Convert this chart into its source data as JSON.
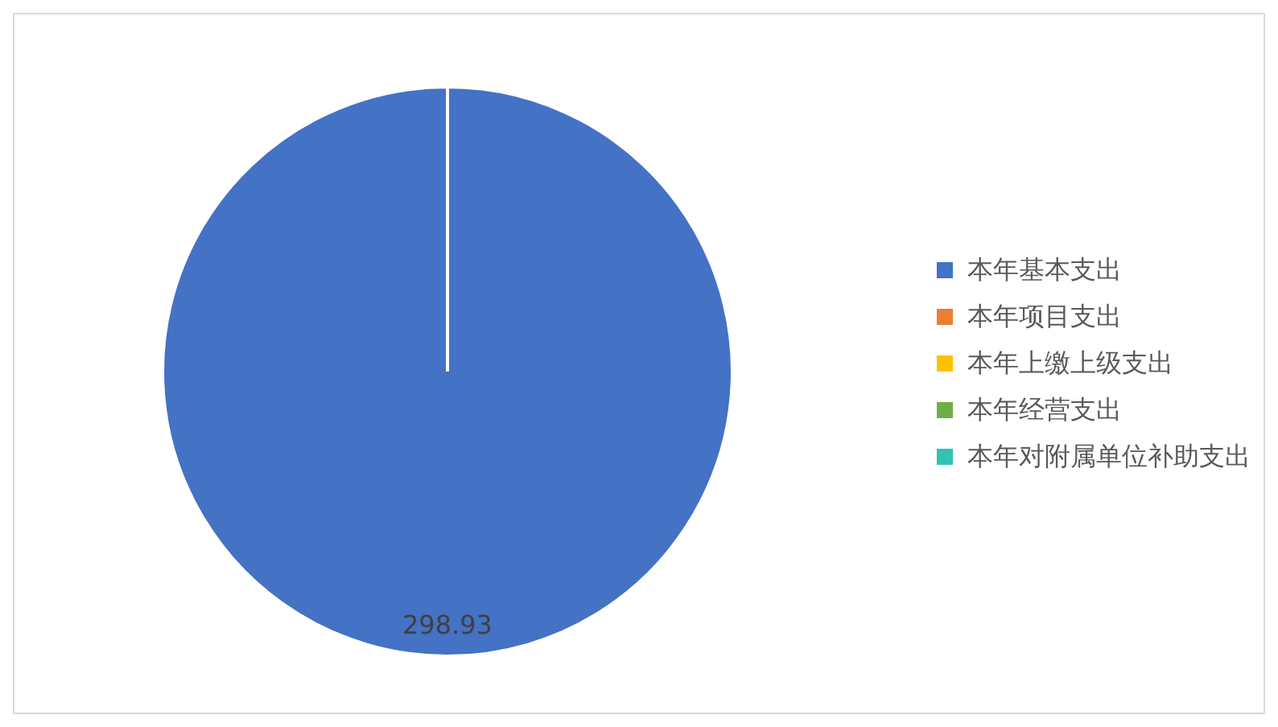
{
  "chart_data": {
    "type": "pie",
    "categories": [
      "本年基本支出",
      "本年项目支出",
      "本年上缴上级支出",
      "本年经营支出",
      "本年对附属单位补助支出"
    ],
    "values": [
      298.93,
      0,
      0,
      0,
      0
    ],
    "colors": [
      "#4472c4",
      "#ed7d31",
      "#ffc000",
      "#70ad47",
      "#2ec4b6"
    ],
    "value_labels": [
      "298.93",
      null,
      null,
      null,
      null
    ],
    "legend": "right"
  }
}
